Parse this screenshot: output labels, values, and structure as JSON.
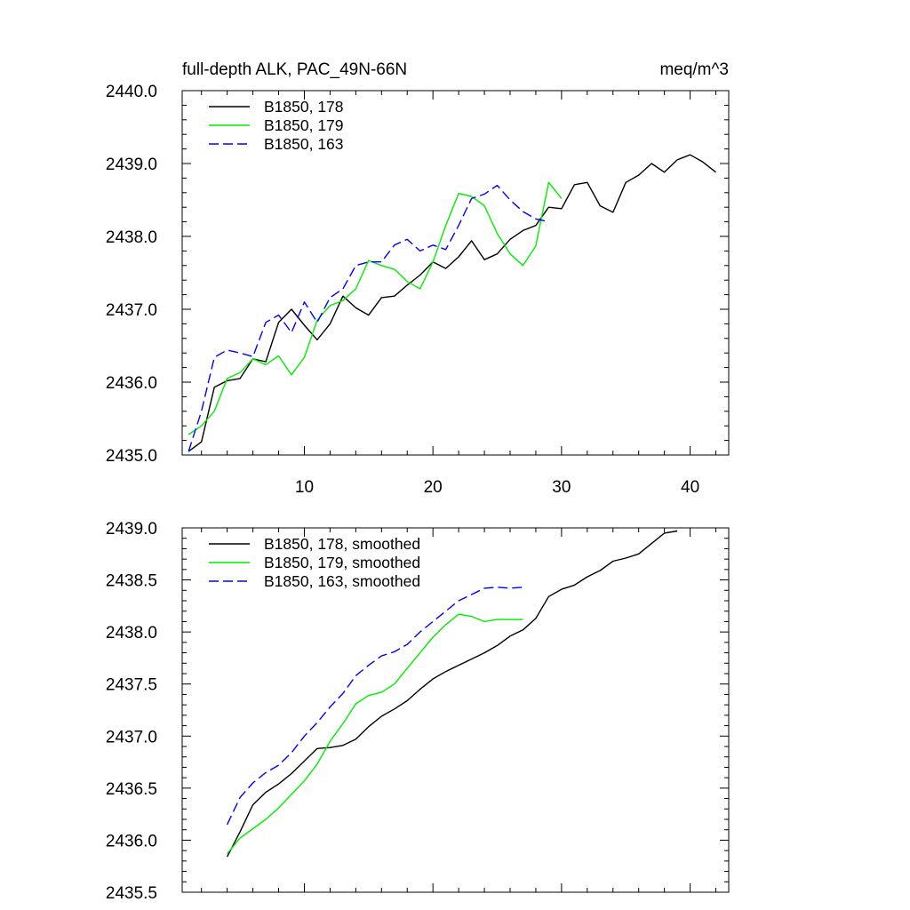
{
  "chart_data": [
    {
      "type": "line",
      "title": "full-depth ALK, PAC_49N-66N",
      "units_label": "meq/m^3",
      "xlim": [
        0.5,
        43
      ],
      "ylim": [
        2435.0,
        2440.0
      ],
      "x_ticks": [
        10,
        20,
        30,
        40
      ],
      "x_tick_labels": [
        "10",
        "20",
        "30",
        "40"
      ],
      "y_ticks": [
        2435,
        2436,
        2437,
        2438,
        2439,
        2440
      ],
      "y_tick_labels": [
        "2435.0",
        "2436.0",
        "2437.0",
        "2438.0",
        "2439.0",
        "2440.0"
      ],
      "series": [
        {
          "name": "B1850, 178",
          "color": "#000000",
          "dash": "solid",
          "x": [
            1,
            2,
            3,
            4,
            5,
            6,
            7,
            8,
            9,
            10,
            11,
            12,
            13,
            14,
            15,
            16,
            17,
            18,
            19,
            20,
            21,
            22,
            23,
            24,
            25,
            26,
            27,
            28,
            29,
            30,
            31,
            32,
            33,
            34,
            35,
            36,
            37,
            38,
            39,
            40,
            41,
            42
          ],
          "values": [
            2435.05,
            2435.18,
            2435.93,
            2436.02,
            2436.05,
            2436.32,
            2436.28,
            2436.82,
            2437.0,
            2436.78,
            2436.58,
            2436.8,
            2437.18,
            2437.02,
            2436.92,
            2437.16,
            2437.18,
            2437.33,
            2437.47,
            2437.65,
            2437.56,
            2437.72,
            2437.94,
            2437.68,
            2437.76,
            2437.96,
            2438.08,
            2438.15,
            2438.4,
            2438.38,
            2438.71,
            2438.74,
            2438.42,
            2438.33,
            2438.74,
            2438.84,
            2439.0,
            2438.88,
            2439.05,
            2439.12,
            2439.02,
            2438.88
          ]
        },
        {
          "name": "B1850, 179",
          "color": "#00ee00",
          "dash": "solid",
          "x": [
            1,
            2,
            3,
            4,
            5,
            6,
            7,
            8,
            9,
            10,
            11,
            12,
            13,
            14,
            15,
            16,
            17,
            18,
            19,
            20,
            21,
            22,
            23,
            24,
            25,
            26,
            27,
            28,
            29,
            30
          ],
          "values": [
            2435.28,
            2435.4,
            2435.6,
            2436.05,
            2436.13,
            2436.32,
            2436.24,
            2436.36,
            2436.1,
            2436.34,
            2436.85,
            2437.05,
            2437.12,
            2437.28,
            2437.67,
            2437.6,
            2437.55,
            2437.38,
            2437.28,
            2437.65,
            2438.15,
            2438.59,
            2438.55,
            2438.42,
            2438.04,
            2437.76,
            2437.6,
            2437.87,
            2438.74,
            2438.52
          ]
        },
        {
          "name": "B1850, 163",
          "color": "#0000ff",
          "dash": "dashed",
          "x": [
            1,
            2,
            3,
            4,
            5,
            6,
            7,
            8,
            9,
            10,
            11,
            12,
            13,
            14,
            15,
            16,
            17,
            18,
            19,
            20,
            21,
            22,
            23,
            24,
            25,
            26,
            27,
            28,
            29
          ],
          "values": [
            2435.05,
            2435.6,
            2436.34,
            2436.44,
            2436.4,
            2436.35,
            2436.82,
            2436.92,
            2436.68,
            2437.1,
            2436.82,
            2437.16,
            2437.28,
            2437.6,
            2437.65,
            2437.65,
            2437.88,
            2437.96,
            2437.8,
            2437.88,
            2437.82,
            2438.15,
            2438.52,
            2438.58,
            2438.7,
            2438.5,
            2438.34,
            2438.24,
            2438.2
          ]
        }
      ]
    },
    {
      "type": "line",
      "title": "",
      "xlim": [
        0.5,
        43
      ],
      "ylim": [
        2435.5,
        2439.0
      ],
      "x_ticks": [
        10,
        20,
        30,
        40
      ],
      "y_ticks": [
        2435.5,
        2436.0,
        2436.5,
        2437.0,
        2437.5,
        2438.0,
        2438.5,
        2439.0
      ],
      "y_tick_labels": [
        "2435.5",
        "2436.0",
        "2436.5",
        "2437.0",
        "2437.5",
        "2438.0",
        "2438.5",
        "2439.0"
      ],
      "series": [
        {
          "name": "B1850, 178, smoothed",
          "color": "#000000",
          "dash": "solid",
          "x": [
            4,
            5,
            6,
            7,
            8,
            9,
            10,
            11,
            12,
            13,
            14,
            15,
            16,
            17,
            18,
            19,
            20,
            21,
            22,
            23,
            24,
            25,
            26,
            27,
            28,
            29,
            30,
            31,
            32,
            33,
            34,
            35,
            36,
            37,
            38,
            39
          ],
          "values": [
            2435.84,
            2436.08,
            2436.34,
            2436.46,
            2436.54,
            2436.64,
            2436.76,
            2436.88,
            2436.89,
            2436.91,
            2436.97,
            2437.09,
            2437.19,
            2437.26,
            2437.34,
            2437.45,
            2437.55,
            2437.62,
            2437.68,
            2437.74,
            2437.8,
            2437.87,
            2437.96,
            2438.02,
            2438.13,
            2438.34,
            2438.41,
            2438.45,
            2438.53,
            2438.59,
            2438.68,
            2438.71,
            2438.75,
            2438.85,
            2438.95,
            2438.97
          ]
        },
        {
          "name": "B1850, 179, smoothed",
          "color": "#00ee00",
          "dash": "solid",
          "x": [
            4,
            5,
            6,
            7,
            8,
            9,
            10,
            11,
            12,
            13,
            14,
            15,
            16,
            17,
            18,
            19,
            20,
            21,
            22,
            23,
            24,
            25,
            26,
            27
          ],
          "values": [
            2435.87,
            2436.02,
            2436.11,
            2436.2,
            2436.31,
            2436.44,
            2436.57,
            2436.73,
            2436.95,
            2437.12,
            2437.31,
            2437.39,
            2437.42,
            2437.5,
            2437.65,
            2437.8,
            2437.95,
            2438.07,
            2438.17,
            2438.15,
            2438.1,
            2438.12,
            2438.12,
            2438.12
          ]
        },
        {
          "name": "B1850, 163, smoothed",
          "color": "#0000ff",
          "dash": "dashed",
          "x": [
            4,
            5,
            6,
            7,
            8,
            9,
            10,
            11,
            12,
            13,
            14,
            15,
            16,
            17,
            18,
            19,
            20,
            21,
            22,
            23,
            24,
            25,
            26,
            27
          ],
          "values": [
            2436.15,
            2436.41,
            2436.55,
            2436.65,
            2436.72,
            2436.84,
            2437.0,
            2437.13,
            2437.28,
            2437.41,
            2437.58,
            2437.68,
            2437.77,
            2437.81,
            2437.88,
            2438.0,
            2438.1,
            2438.2,
            2438.3,
            2438.36,
            2438.42,
            2438.43,
            2438.42,
            2438.43
          ]
        }
      ]
    }
  ]
}
